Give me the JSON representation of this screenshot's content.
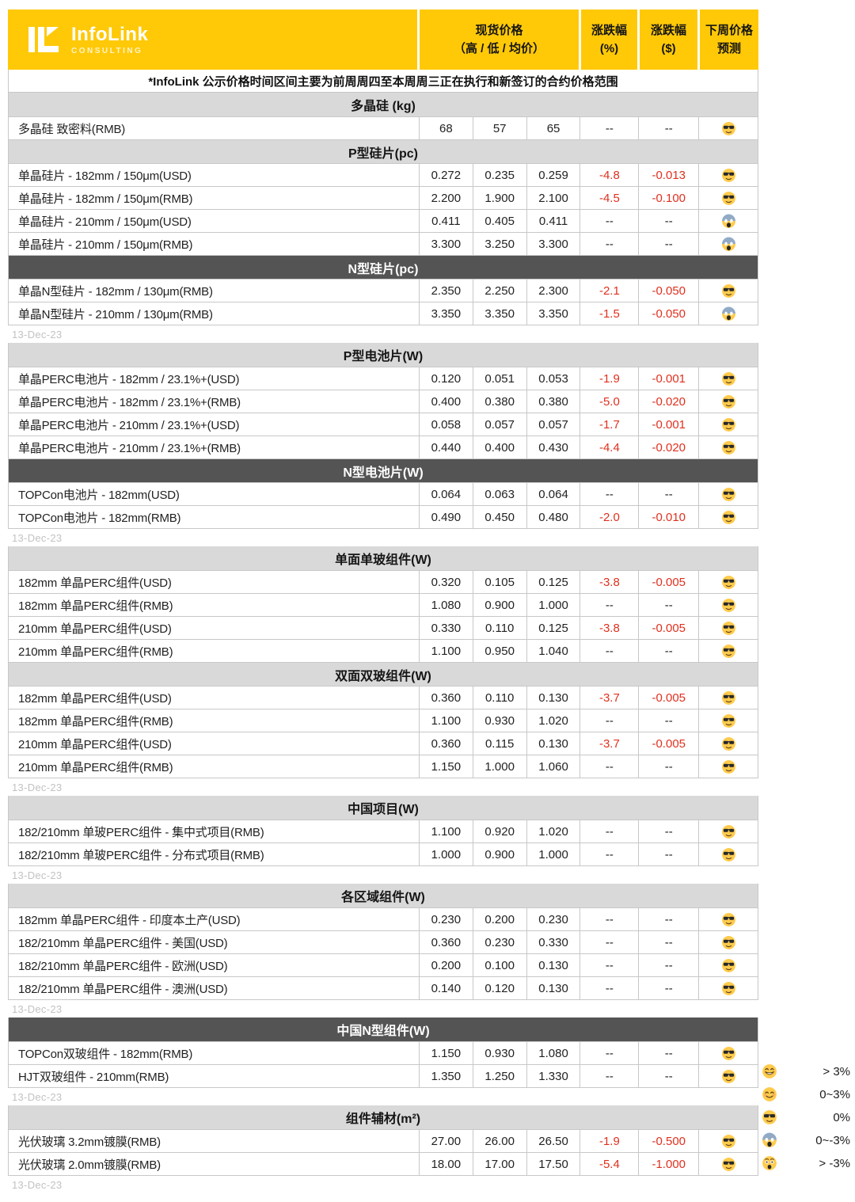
{
  "header": {
    "logo": {
      "title": "InfoLink",
      "subtitle": "CONSULTING"
    },
    "columns": [
      {
        "line1": "现货价格",
        "line2": "（高 / 低 / 均价）"
      },
      {
        "line1": "涨跌幅",
        "line2": "(%)"
      },
      {
        "line1": "涨跌幅",
        "line2": "($)"
      },
      {
        "line1": "下周价格",
        "line2": "预测"
      }
    ]
  },
  "note": "*InfoLink 公示价格时间区间主要为前周周四至本周周三正在执行和新签订的合约价格范围",
  "tables": [
    {
      "date": "13-Dec-23",
      "sections": [
        {
          "title": "多晶硅 (kg)",
          "style": "light",
          "rows": [
            {
              "label": "多晶硅 致密料(RMB)",
              "high": "68",
              "low": "57",
              "avg": "65",
              "pct_change": "--",
              "usd_change": "--",
              "forecast": "sunglasses"
            }
          ]
        },
        {
          "title": "P型硅片(pc)",
          "style": "light",
          "rows": [
            {
              "label": "单晶硅片 - 182mm / 150μm(USD)",
              "high": "0.272",
              "low": "0.235",
              "avg": "0.259",
              "pct_change": "-4.8",
              "usd_change": "-0.013",
              "forecast": "sunglasses"
            },
            {
              "label": "单晶硅片 - 182mm / 150μm(RMB)",
              "high": "2.200",
              "low": "1.900",
              "avg": "2.100",
              "pct_change": "-4.5",
              "usd_change": "-0.100",
              "forecast": "sunglasses"
            },
            {
              "label": "单晶硅片 - 210mm / 150μm(USD)",
              "high": "0.411",
              "low": "0.405",
              "avg": "0.411",
              "pct_change": "--",
              "usd_change": "--",
              "forecast": "scream"
            },
            {
              "label": "单晶硅片 - 210mm / 150μm(RMB)",
              "high": "3.300",
              "low": "3.250",
              "avg": "3.300",
              "pct_change": "--",
              "usd_change": "--",
              "forecast": "scream"
            }
          ]
        },
        {
          "title": "N型硅片(pc)",
          "style": "dark",
          "rows": [
            {
              "label": "单晶N型硅片 - 182mm / 130μm(RMB)",
              "high": "2.350",
              "low": "2.250",
              "avg": "2.300",
              "pct_change": "-2.1",
              "usd_change": "-0.050",
              "forecast": "sunglasses"
            },
            {
              "label": "单晶N型硅片 - 210mm / 130μm(RMB)",
              "high": "3.350",
              "low": "3.350",
              "avg": "3.350",
              "pct_change": "-1.5",
              "usd_change": "-0.050",
              "forecast": "scream"
            }
          ]
        }
      ]
    },
    {
      "date": "13-Dec-23",
      "sections": [
        {
          "title": "P型电池片(W)",
          "style": "light",
          "rows": [
            {
              "label": "单晶PERC电池片 - 182mm / 23.1%+(USD)",
              "high": "0.120",
              "low": "0.051",
              "avg": "0.053",
              "pct_change": "-1.9",
              "usd_change": "-0.001",
              "forecast": "sunglasses"
            },
            {
              "label": "单晶PERC电池片 - 182mm / 23.1%+(RMB)",
              "high": "0.400",
              "low": "0.380",
              "avg": "0.380",
              "pct_change": "-5.0",
              "usd_change": "-0.020",
              "forecast": "sunglasses"
            },
            {
              "label": "单晶PERC电池片 - 210mm / 23.1%+(USD)",
              "high": "0.058",
              "low": "0.057",
              "avg": "0.057",
              "pct_change": "-1.7",
              "usd_change": "-0.001",
              "forecast": "sunglasses"
            },
            {
              "label": "单晶PERC电池片 - 210mm / 23.1%+(RMB)",
              "high": "0.440",
              "low": "0.400",
              "avg": "0.430",
              "pct_change": "-4.4",
              "usd_change": "-0.020",
              "forecast": "sunglasses"
            }
          ]
        },
        {
          "title": "N型电池片(W)",
          "style": "dark",
          "rows": [
            {
              "label": "TOPCon电池片 - 182mm(USD)",
              "high": "0.064",
              "low": "0.063",
              "avg": "0.064",
              "pct_change": "--",
              "usd_change": "--",
              "forecast": "sunglasses"
            },
            {
              "label": "TOPCon电池片 - 182mm(RMB)",
              "high": "0.490",
              "low": "0.450",
              "avg": "0.480",
              "pct_change": "-2.0",
              "usd_change": "-0.010",
              "forecast": "sunglasses"
            }
          ]
        }
      ]
    },
    {
      "date": "13-Dec-23",
      "sections": [
        {
          "title": "单面单玻组件(W)",
          "style": "light",
          "rows": [
            {
              "label": "182mm 单晶PERC组件(USD)",
              "high": "0.320",
              "low": "0.105",
              "avg": "0.125",
              "pct_change": "-3.8",
              "usd_change": "-0.005",
              "forecast": "sunglasses"
            },
            {
              "label": "182mm 单晶PERC组件(RMB)",
              "high": "1.080",
              "low": "0.900",
              "avg": "1.000",
              "pct_change": "--",
              "usd_change": "--",
              "forecast": "sunglasses"
            },
            {
              "label": "210mm 单晶PERC组件(USD)",
              "high": "0.330",
              "low": "0.110",
              "avg": "0.125",
              "pct_change": "-3.8",
              "usd_change": "-0.005",
              "forecast": "sunglasses"
            },
            {
              "label": "210mm 单晶PERC组件(RMB)",
              "high": "1.100",
              "low": "0.950",
              "avg": "1.040",
              "pct_change": "--",
              "usd_change": "--",
              "forecast": "sunglasses"
            }
          ]
        },
        {
          "title": "双面双玻组件(W)",
          "style": "light",
          "rows": [
            {
              "label": "182mm 单晶PERC组件(USD)",
              "high": "0.360",
              "low": "0.110",
              "avg": "0.130",
              "pct_change": "-3.7",
              "usd_change": "-0.005",
              "forecast": "sunglasses"
            },
            {
              "label": "182mm 单晶PERC组件(RMB)",
              "high": "1.100",
              "low": "0.930",
              "avg": "1.020",
              "pct_change": "--",
              "usd_change": "--",
              "forecast": "sunglasses"
            },
            {
              "label": "210mm 单晶PERC组件(USD)",
              "high": "0.360",
              "low": "0.115",
              "avg": "0.130",
              "pct_change": "-3.7",
              "usd_change": "-0.005",
              "forecast": "sunglasses"
            },
            {
              "label": "210mm 单晶PERC组件(RMB)",
              "high": "1.150",
              "low": "1.000",
              "avg": "1.060",
              "pct_change": "--",
              "usd_change": "--",
              "forecast": "sunglasses"
            }
          ]
        }
      ]
    },
    {
      "date": "13-Dec-23",
      "sections": [
        {
          "title": "中国项目(W)",
          "style": "light",
          "rows": [
            {
              "label": "182/210mm 单玻PERC组件 - 集中式项目(RMB)",
              "high": "1.100",
              "low": "0.920",
              "avg": "1.020",
              "pct_change": "--",
              "usd_change": "--",
              "forecast": "sunglasses"
            },
            {
              "label": "182/210mm 单玻PERC组件 - 分布式项目(RMB)",
              "high": "1.000",
              "low": "0.900",
              "avg": "1.000",
              "pct_change": "--",
              "usd_change": "--",
              "forecast": "sunglasses"
            }
          ]
        }
      ]
    },
    {
      "date": "13-Dec-23",
      "sections": [
        {
          "title": "各区域组件(W)",
          "style": "light",
          "rows": [
            {
              "label": "182mm 单晶PERC组件 - 印度本土产(USD)",
              "high": "0.230",
              "low": "0.200",
              "avg": "0.230",
              "pct_change": "--",
              "usd_change": "--",
              "forecast": "sunglasses"
            },
            {
              "label": "182/210mm 单晶PERC组件 - 美国(USD)",
              "high": "0.360",
              "low": "0.230",
              "avg": "0.330",
              "pct_change": "--",
              "usd_change": "--",
              "forecast": "sunglasses"
            },
            {
              "label": "182/210mm 单晶PERC组件 - 欧洲(USD)",
              "high": "0.200",
              "low": "0.100",
              "avg": "0.130",
              "pct_change": "--",
              "usd_change": "--",
              "forecast": "sunglasses"
            },
            {
              "label": "182/210mm 单晶PERC组件 - 澳洲(USD)",
              "high": "0.140",
              "low": "0.120",
              "avg": "0.130",
              "pct_change": "--",
              "usd_change": "--",
              "forecast": "sunglasses"
            }
          ]
        }
      ]
    },
    {
      "date": "13-Dec-23",
      "sections": [
        {
          "title": "中国N型组件(W)",
          "style": "dark",
          "rows": [
            {
              "label": "TOPCon双玻组件 - 182mm(RMB)",
              "high": "1.150",
              "low": "0.930",
              "avg": "1.080",
              "pct_change": "--",
              "usd_change": "--",
              "forecast": "sunglasses"
            },
            {
              "label": "HJT双玻组件 - 210mm(RMB)",
              "high": "1.350",
              "low": "1.250",
              "avg": "1.330",
              "pct_change": "--",
              "usd_change": "--",
              "forecast": "sunglasses"
            }
          ]
        }
      ]
    },
    {
      "date": "13-Dec-23",
      "sections": [
        {
          "title": "组件辅材(m²)",
          "style": "light",
          "rows": [
            {
              "label": "光伏玻璃 3.2mm镀膜(RMB)",
              "high": "27.00",
              "low": "26.00",
              "avg": "26.50",
              "pct_change": "-1.9",
              "usd_change": "-0.500",
              "forecast": "sunglasses"
            },
            {
              "label": "光伏玻璃 2.0mm镀膜(RMB)",
              "high": "18.00",
              "low": "17.00",
              "avg": "17.50",
              "pct_change": "-5.4",
              "usd_change": "-1.000",
              "forecast": "sunglasses"
            }
          ]
        }
      ]
    }
  ],
  "legend": [
    {
      "icon": "grin",
      "label": "> 3%"
    },
    {
      "icon": "smile",
      "label": "0~3%"
    },
    {
      "icon": "sunglasses",
      "label": "0%"
    },
    {
      "icon": "scream",
      "label": "0~-3%"
    },
    {
      "icon": "astonished",
      "label": "> -3%"
    }
  ],
  "colors": {
    "brand_yellow": "#FFC907",
    "negative_red": "#E0301E",
    "section_light": "#D9D9D9",
    "section_dark": "#545454",
    "border_gray": "#C8C8C8",
    "date_gray": "#C2C2C2"
  }
}
